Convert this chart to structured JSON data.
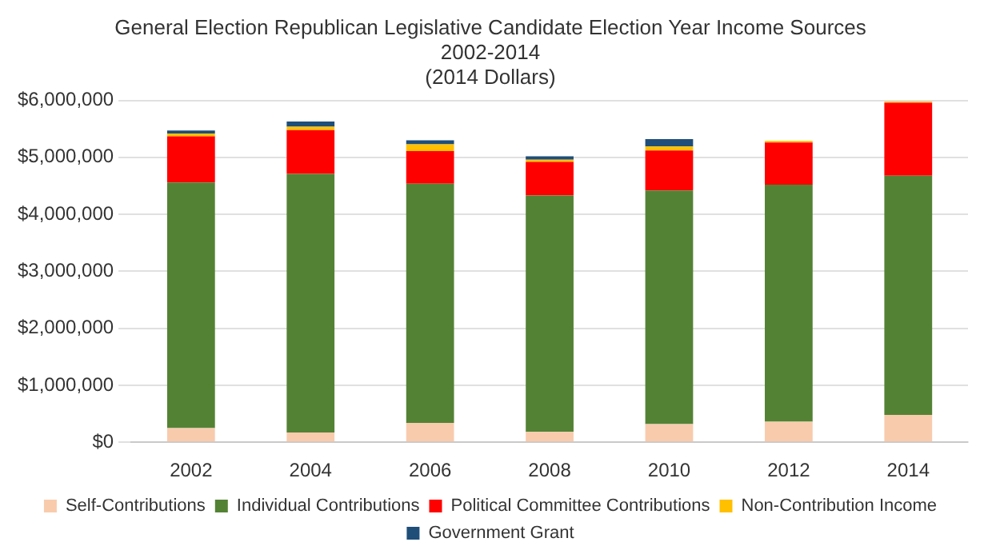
{
  "chart_data": {
    "type": "bar",
    "title": "General Election Republican Legislative Candidate Election Year Income Sources",
    "subtitle": "2002-2014",
    "annotations": [
      "(2014 Dollars)"
    ],
    "stacked": true,
    "categories": [
      "2002",
      "2004",
      "2006",
      "2008",
      "2010",
      "2012",
      "2014"
    ],
    "series": [
      {
        "name": "Self-Contributions",
        "color": "#f8cbad",
        "values": [
          250000,
          170000,
          340000,
          180000,
          320000,
          360000,
          480000
        ]
      },
      {
        "name": "Individual Contributions",
        "color": "#548235",
        "values": [
          4310000,
          4540000,
          4200000,
          4150000,
          4100000,
          4160000,
          4200000
        ]
      },
      {
        "name": "Political Committee Contributions",
        "color": "#ff0000",
        "values": [
          810000,
          770000,
          570000,
          590000,
          700000,
          740000,
          1280000
        ]
      },
      {
        "name": "Non-Contribution Income",
        "color": "#ffc000",
        "values": [
          50000,
          60000,
          120000,
          40000,
          70000,
          30000,
          20000
        ]
      },
      {
        "name": "Government Grant",
        "color": "#1f4e79",
        "values": [
          50000,
          90000,
          70000,
          60000,
          130000,
          0,
          0
        ]
      }
    ],
    "ylim": [
      0,
      6000000
    ],
    "yticks": [
      {
        "value": 0,
        "label": "$0"
      },
      {
        "value": 1000000,
        "label": "$1,000,000"
      },
      {
        "value": 2000000,
        "label": "$2,000,000"
      },
      {
        "value": 3000000,
        "label": "$3,000,000"
      },
      {
        "value": 4000000,
        "label": "$4,000,000"
      },
      {
        "value": 5000000,
        "label": "$5,000,000"
      },
      {
        "value": 6000000,
        "label": "$6,000,000"
      }
    ],
    "grid": "y",
    "legend": "bottom"
  }
}
